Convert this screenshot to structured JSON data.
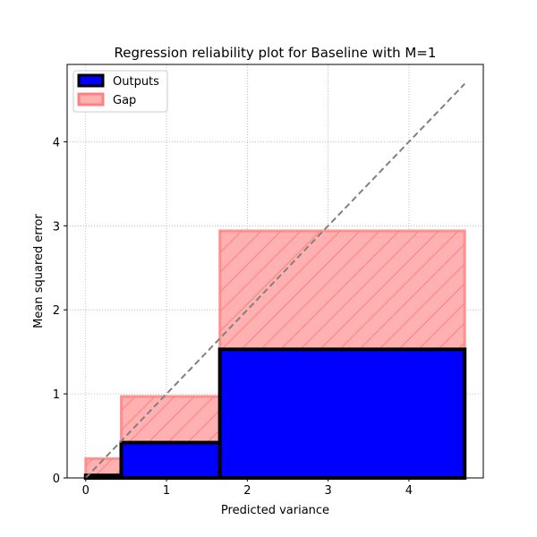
{
  "chart_data": {
    "type": "bar",
    "title": "Regression reliability plot for Baseline with M=1",
    "xlabel": "Predicted variance",
    "ylabel": "Mean squared error",
    "xlim": [
      -0.23,
      4.92
    ],
    "ylim": [
      0,
      4.92
    ],
    "xticks": [
      "0",
      "1",
      "2",
      "3",
      "4"
    ],
    "yticks": [
      "0",
      "1",
      "2",
      "3",
      "4"
    ],
    "grid": true,
    "legend_position": "top-left",
    "bins": [
      {
        "x_start": 0.0,
        "x_end": 0.44,
        "output": 0.03,
        "gap_top": 0.23
      },
      {
        "x_start": 0.44,
        "x_end": 1.66,
        "output": 0.42,
        "gap_top": 0.97
      },
      {
        "x_start": 1.66,
        "x_end": 4.69,
        "output": 1.53,
        "gap_top": 2.94
      }
    ],
    "diagonal": {
      "from": [
        0,
        0
      ],
      "to": [
        4.69,
        4.69
      ],
      "color": "#808080",
      "style": "dashed"
    },
    "series": [
      {
        "name": "Outputs",
        "color": "#0000ff",
        "edge": "#000000"
      },
      {
        "name": "Gap",
        "color": "#ffb0b0",
        "edge": "#ff8080",
        "hatch": "/"
      }
    ]
  }
}
